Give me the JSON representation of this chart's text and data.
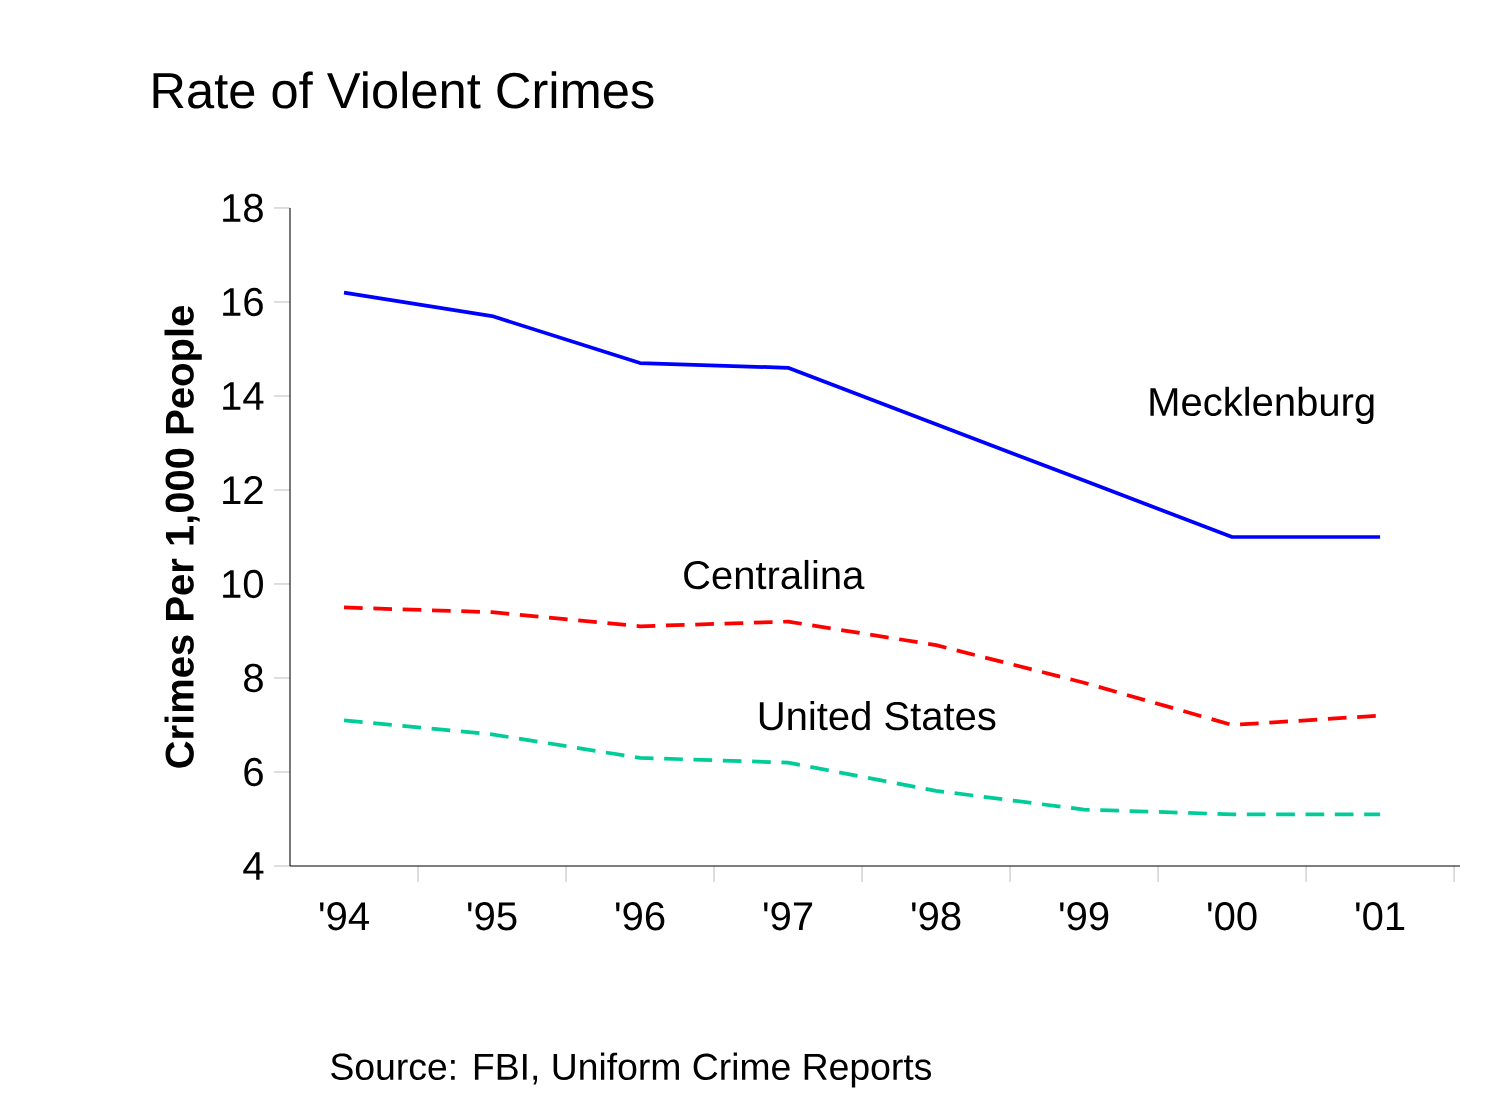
{
  "chart_data": {
    "type": "line",
    "title": "Rate of Violent Crimes",
    "ylabel": "Crimes Per 1,000 People",
    "categories": [
      "'94",
      "'95",
      "'96",
      "'97",
      "'98",
      "'99",
      "'00",
      "'01"
    ],
    "series": [
      {
        "name": "Mecklenburg",
        "color": "#0000ff",
        "line_style": "solid",
        "values": [
          16.2,
          15.7,
          14.7,
          14.6,
          13.4,
          12.2,
          11.0,
          11.0
        ]
      },
      {
        "name": "Centralina",
        "color": "#ff0000",
        "line_style": "dashed",
        "values": [
          9.5,
          9.4,
          9.1,
          9.2,
          8.7,
          7.9,
          7.0,
          7.2
        ]
      },
      {
        "name": "United States",
        "color": "#00cc99",
        "line_style": "dashed",
        "values": [
          7.1,
          6.8,
          6.3,
          6.2,
          5.6,
          5.2,
          5.1,
          5.1
        ]
      }
    ],
    "ylim": [
      4,
      18
    ],
    "yticks": [
      4,
      6,
      8,
      10,
      12,
      14,
      16,
      18
    ],
    "grid": false,
    "marker": "none",
    "annotations": [
      "Source: FBI, Uniform Crime Reports"
    ]
  }
}
